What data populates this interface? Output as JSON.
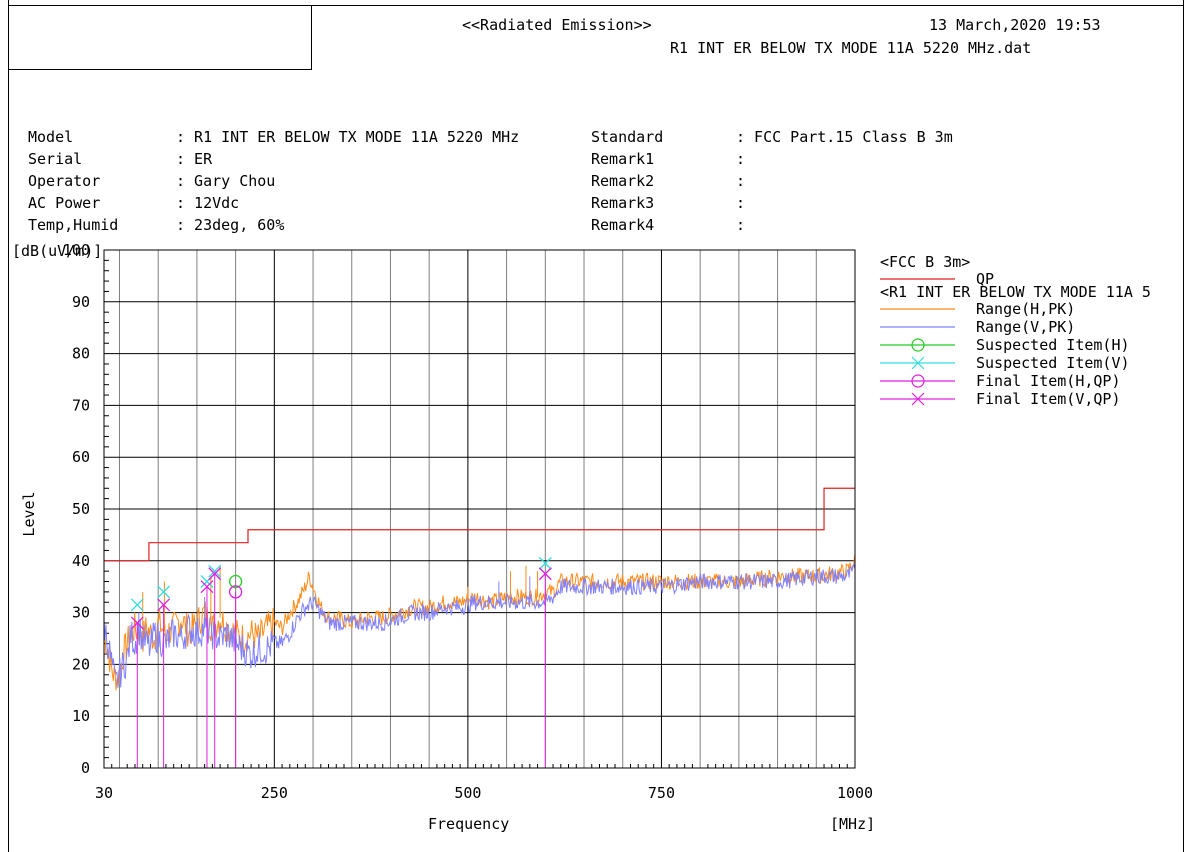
{
  "header": {
    "title": "<<Radiated Emission>>",
    "datetime": "13 March,2020 19:53",
    "filename": "R1 INT ER BELOW TX MODE 11A 5220 MHz.dat"
  },
  "info_left": [
    {
      "key": "Model",
      "value": ": R1 INT ER BELOW TX MODE 11A 5220 MHz"
    },
    {
      "key": "Serial",
      "value": ": ER"
    },
    {
      "key": "Operator",
      "value": ": Gary Chou"
    },
    {
      "key": "AC Power",
      "value": ": 12Vdc"
    },
    {
      "key": "Temp,Humid",
      "value": ": 23deg, 60%"
    }
  ],
  "info_right": [
    {
      "key": "Standard",
      "value": ": FCC Part.15 Class B 3m"
    },
    {
      "key": "Remark1",
      "value": ":"
    },
    {
      "key": "Remark2",
      "value": ":"
    },
    {
      "key": "Remark3",
      "value": ":"
    },
    {
      "key": "Remark4",
      "value": ":"
    }
  ],
  "colors": {
    "limit": "#e02020",
    "range_h": "#ff8c1a",
    "range_v": "#8080ff",
    "suspected_h": "#22cc22",
    "suspected_v": "#33dddd",
    "final": "#e020e0",
    "grid_major": "#000000",
    "grid_minor": "#808080"
  },
  "chart_data": {
    "type": "line",
    "title": "",
    "ylabel": "Level",
    "yunit": "[dB(uV/m)]",
    "xlabel": "Frequency",
    "xunit": "[MHz]",
    "xlim": [
      30,
      1000
    ],
    "ylim": [
      0,
      100
    ],
    "xticks": [
      30,
      250,
      500,
      750,
      1000
    ],
    "yticks": [
      0,
      10,
      20,
      30,
      40,
      50,
      60,
      70,
      80,
      90,
      100
    ],
    "grid": true,
    "legend_position": "right",
    "legend_groups": [
      {
        "header": "<FCC B  3m>",
        "items": [
          {
            "label": "QP",
            "key": "limit",
            "marker": "none"
          }
        ]
      },
      {
        "header": "<R1 INT ER BELOW TX MODE 11A 5",
        "items": [
          {
            "label": "Range(H,PK)",
            "key": "range_h",
            "marker": "none"
          },
          {
            "label": "Range(V,PK)",
            "key": "range_v",
            "marker": "none"
          },
          {
            "label": "Suspected Item(H)",
            "key": "suspected_h",
            "marker": "circle"
          },
          {
            "label": "Suspected Item(V)",
            "key": "suspected_v",
            "marker": "x"
          },
          {
            "label": "Final Item(H,QP)",
            "key": "final",
            "marker": "circle"
          },
          {
            "label": "Final Item(V,QP)",
            "key": "final",
            "marker": "x"
          }
        ]
      }
    ],
    "limit_line": {
      "name": "QP",
      "points": [
        [
          30,
          40
        ],
        [
          88,
          40
        ],
        [
          88,
          43.5
        ],
        [
          216,
          43.5
        ],
        [
          216,
          46
        ],
        [
          960,
          46
        ],
        [
          960,
          54
        ],
        [
          1000,
          54
        ]
      ]
    },
    "series": [
      {
        "name": "Range(H,PK)",
        "key": "range_h",
        "points": [
          [
            30,
            26
          ],
          [
            35,
            23
          ],
          [
            40,
            19
          ],
          [
            45,
            17
          ],
          [
            50,
            18
          ],
          [
            55,
            22
          ],
          [
            60,
            24
          ],
          [
            65,
            26
          ],
          [
            70,
            27
          ],
          [
            75,
            26
          ],
          [
            80,
            25
          ],
          [
            85,
            27
          ],
          [
            90,
            26
          ],
          [
            95,
            25
          ],
          [
            100,
            28
          ],
          [
            110,
            26
          ],
          [
            120,
            27
          ],
          [
            130,
            29
          ],
          [
            140,
            26
          ],
          [
            150,
            28
          ],
          [
            160,
            30
          ],
          [
            170,
            27
          ],
          [
            180,
            29
          ],
          [
            190,
            27
          ],
          [
            200,
            26
          ],
          [
            210,
            25
          ],
          [
            220,
            26
          ],
          [
            230,
            25
          ],
          [
            240,
            27
          ],
          [
            250,
            28
          ],
          [
            260,
            27
          ],
          [
            270,
            30
          ],
          [
            280,
            32
          ],
          [
            290,
            35
          ],
          [
            295,
            37
          ],
          [
            300,
            35
          ],
          [
            310,
            31
          ],
          [
            320,
            29
          ],
          [
            330,
            29
          ],
          [
            350,
            28
          ],
          [
            370,
            29
          ],
          [
            390,
            29
          ],
          [
            410,
            30
          ],
          [
            430,
            31
          ],
          [
            450,
            31
          ],
          [
            470,
            32
          ],
          [
            490,
            32
          ],
          [
            510,
            33
          ],
          [
            530,
            32
          ],
          [
            550,
            33
          ],
          [
            570,
            33
          ],
          [
            590,
            33
          ],
          [
            600,
            34
          ],
          [
            610,
            34
          ],
          [
            620,
            36
          ],
          [
            650,
            36
          ],
          [
            700,
            36
          ],
          [
            750,
            36
          ],
          [
            800,
            36
          ],
          [
            850,
            36
          ],
          [
            900,
            37
          ],
          [
            950,
            37
          ],
          [
            990,
            38
          ],
          [
            1000,
            40
          ]
        ]
      },
      {
        "name": "Range(V,PK)",
        "key": "range_v",
        "points": [
          [
            30,
            28
          ],
          [
            35,
            24
          ],
          [
            40,
            20
          ],
          [
            45,
            16
          ],
          [
            50,
            18
          ],
          [
            55,
            20
          ],
          [
            60,
            21
          ],
          [
            65,
            26
          ],
          [
            70,
            24
          ],
          [
            75,
            27
          ],
          [
            80,
            25
          ],
          [
            85,
            24
          ],
          [
            90,
            23
          ],
          [
            95,
            26
          ],
          [
            100,
            25
          ],
          [
            110,
            24
          ],
          [
            120,
            26
          ],
          [
            130,
            25
          ],
          [
            140,
            27
          ],
          [
            150,
            26
          ],
          [
            160,
            27
          ],
          [
            170,
            26
          ],
          [
            180,
            25
          ],
          [
            190,
            26
          ],
          [
            200,
            24
          ],
          [
            210,
            23
          ],
          [
            220,
            22
          ],
          [
            230,
            23
          ],
          [
            240,
            23
          ],
          [
            250,
            24
          ],
          [
            260,
            24
          ],
          [
            270,
            26
          ],
          [
            280,
            29
          ],
          [
            290,
            31
          ],
          [
            300,
            32
          ],
          [
            310,
            30
          ],
          [
            320,
            28
          ],
          [
            330,
            28
          ],
          [
            350,
            28
          ],
          [
            370,
            28
          ],
          [
            390,
            28
          ],
          [
            410,
            29
          ],
          [
            430,
            30
          ],
          [
            450,
            30
          ],
          [
            470,
            31
          ],
          [
            490,
            31
          ],
          [
            510,
            32
          ],
          [
            530,
            32
          ],
          [
            550,
            32
          ],
          [
            570,
            32
          ],
          [
            590,
            32
          ],
          [
            600,
            32
          ],
          [
            610,
            33
          ],
          [
            620,
            35
          ],
          [
            650,
            35
          ],
          [
            700,
            35
          ],
          [
            750,
            35
          ],
          [
            800,
            36
          ],
          [
            850,
            36
          ],
          [
            900,
            36
          ],
          [
            950,
            37
          ],
          [
            990,
            37
          ],
          [
            1000,
            38
          ]
        ]
      }
    ],
    "spikes": [
      {
        "key": "range_h",
        "x": 80,
        "y": 34
      },
      {
        "key": "range_h",
        "x": 108,
        "y": 36
      },
      {
        "key": "range_h",
        "x": 168,
        "y": 37
      },
      {
        "key": "range_h",
        "x": 180,
        "y": 39
      },
      {
        "key": "range_h",
        "x": 500,
        "y": 35
      },
      {
        "key": "range_h",
        "x": 555,
        "y": 38
      },
      {
        "key": "range_h",
        "x": 575,
        "y": 39
      },
      {
        "key": "range_h",
        "x": 590,
        "y": 38
      },
      {
        "key": "range_v",
        "x": 75,
        "y": 30
      },
      {
        "key": "range_v",
        "x": 160,
        "y": 33
      },
      {
        "key": "range_v",
        "x": 540,
        "y": 36
      },
      {
        "key": "range_v",
        "x": 580,
        "y": 37
      }
    ],
    "suspected": [
      {
        "key": "suspected_v",
        "marker": "x",
        "x": 73,
        "y": 31.5
      },
      {
        "key": "suspected_v",
        "marker": "x",
        "x": 107,
        "y": 34
      },
      {
        "key": "suspected_v",
        "marker": "x",
        "x": 163,
        "y": 36
      },
      {
        "key": "suspected_v",
        "marker": "x",
        "x": 173,
        "y": 38
      },
      {
        "key": "suspected_h",
        "marker": "circle",
        "x": 200,
        "y": 36
      },
      {
        "key": "suspected_v",
        "marker": "x",
        "x": 600,
        "y": 39.5
      }
    ],
    "final": [
      {
        "key": "final",
        "marker": "x",
        "x": 73,
        "y": 28
      },
      {
        "key": "final",
        "marker": "x",
        "x": 107,
        "y": 31.5
      },
      {
        "key": "final",
        "marker": "x",
        "x": 163,
        "y": 35
      },
      {
        "key": "final",
        "marker": "x",
        "x": 173,
        "y": 37.5
      },
      {
        "key": "final",
        "marker": "circle",
        "x": 200,
        "y": 34
      },
      {
        "key": "final",
        "marker": "x",
        "x": 600,
        "y": 37.5
      }
    ]
  }
}
